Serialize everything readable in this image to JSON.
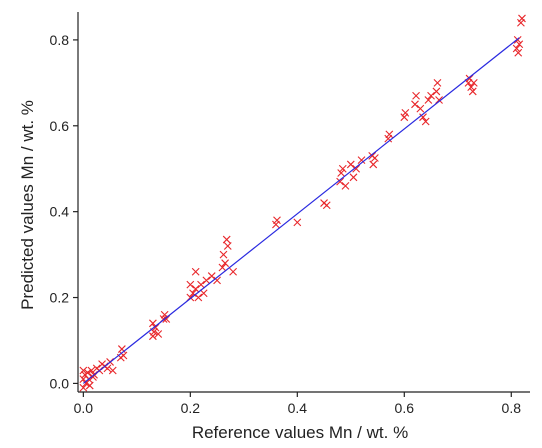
{
  "chart_data": {
    "type": "scatter",
    "title": "",
    "xlabel": "Reference values Mn / wt. %",
    "ylabel": "Predicted values Mn / wt. %",
    "xlim": [
      -0.01,
      0.835
    ],
    "ylim": [
      -0.02,
      0.865
    ],
    "xticks": [
      0.0,
      0.2,
      0.4,
      0.6,
      0.8
    ],
    "yticks": [
      0.0,
      0.2,
      0.4,
      0.6,
      0.8
    ],
    "xtick_labels": [
      "0.0",
      "0.2",
      "0.4",
      "0.6",
      "0.8"
    ],
    "ytick_labels": [
      "0.0",
      "0.2",
      "0.4",
      "0.6",
      "0.8"
    ],
    "grid": false,
    "legend": false,
    "colors": {
      "points": "#e8262a",
      "fit_line": "#2a2ae0",
      "axes": "#222222"
    },
    "series": [
      {
        "marker": "x",
        "points": [
          [
            0.0,
            0.01
          ],
          [
            0.0,
            0.03
          ],
          [
            0.0,
            -0.01
          ],
          [
            0.003,
            0.02
          ],
          [
            0.005,
            0.0
          ],
          [
            0.008,
            0.025
          ],
          [
            0.01,
            0.01
          ],
          [
            0.012,
            -0.005
          ],
          [
            0.015,
            0.03
          ],
          [
            0.018,
            0.015
          ],
          [
            0.02,
            0.02
          ],
          [
            0.025,
            0.035
          ],
          [
            0.03,
            0.03
          ],
          [
            0.035,
            0.045
          ],
          [
            0.04,
            0.04
          ],
          [
            0.045,
            0.035
          ],
          [
            0.05,
            0.05
          ],
          [
            0.055,
            0.03
          ],
          [
            0.07,
            0.06
          ],
          [
            0.072,
            0.08
          ],
          [
            0.075,
            0.065
          ],
          [
            0.13,
            0.11
          ],
          [
            0.13,
            0.14
          ],
          [
            0.132,
            0.12
          ],
          [
            0.135,
            0.13
          ],
          [
            0.14,
            0.115
          ],
          [
            0.15,
            0.15
          ],
          [
            0.152,
            0.16
          ],
          [
            0.155,
            0.15
          ],
          [
            0.2,
            0.2
          ],
          [
            0.2,
            0.23
          ],
          [
            0.205,
            0.21
          ],
          [
            0.21,
            0.26
          ],
          [
            0.21,
            0.22
          ],
          [
            0.215,
            0.2
          ],
          [
            0.22,
            0.23
          ],
          [
            0.225,
            0.21
          ],
          [
            0.23,
            0.24
          ],
          [
            0.24,
            0.25
          ],
          [
            0.25,
            0.24
          ],
          [
            0.26,
            0.27
          ],
          [
            0.262,
            0.3
          ],
          [
            0.265,
            0.28
          ],
          [
            0.268,
            0.335
          ],
          [
            0.27,
            0.32
          ],
          [
            0.28,
            0.26
          ],
          [
            0.36,
            0.37
          ],
          [
            0.362,
            0.38
          ],
          [
            0.4,
            0.375
          ],
          [
            0.45,
            0.42
          ],
          [
            0.455,
            0.415
          ],
          [
            0.48,
            0.47
          ],
          [
            0.482,
            0.49
          ],
          [
            0.485,
            0.5
          ],
          [
            0.49,
            0.46
          ],
          [
            0.5,
            0.51
          ],
          [
            0.505,
            0.48
          ],
          [
            0.51,
            0.5
          ],
          [
            0.52,
            0.52
          ],
          [
            0.54,
            0.53
          ],
          [
            0.542,
            0.51
          ],
          [
            0.545,
            0.525
          ],
          [
            0.57,
            0.57
          ],
          [
            0.572,
            0.58
          ],
          [
            0.6,
            0.62
          ],
          [
            0.602,
            0.63
          ],
          [
            0.62,
            0.65
          ],
          [
            0.622,
            0.67
          ],
          [
            0.63,
            0.64
          ],
          [
            0.635,
            0.62
          ],
          [
            0.64,
            0.61
          ],
          [
            0.645,
            0.66
          ],
          [
            0.65,
            0.67
          ],
          [
            0.66,
            0.68
          ],
          [
            0.662,
            0.7
          ],
          [
            0.665,
            0.66
          ],
          [
            0.72,
            0.7
          ],
          [
            0.722,
            0.71
          ],
          [
            0.725,
            0.69
          ],
          [
            0.728,
            0.68
          ],
          [
            0.73,
            0.7
          ],
          [
            0.81,
            0.78
          ],
          [
            0.812,
            0.8
          ],
          [
            0.813,
            0.77
          ],
          [
            0.815,
            0.79
          ],
          [
            0.818,
            0.84
          ],
          [
            0.82,
            0.85
          ]
        ]
      }
    ],
    "fit_line": {
      "x": [
        0.0,
        0.815
      ],
      "y": [
        0.0,
        0.805
      ]
    }
  }
}
